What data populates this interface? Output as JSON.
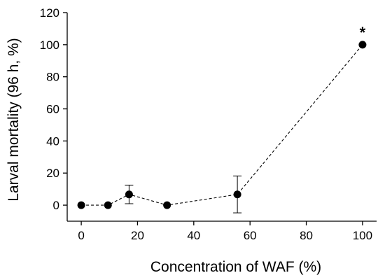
{
  "chart_data": {
    "type": "scatter",
    "xlabel": "Concentration of WAF (%)",
    "ylabel": "Larval mortality (96 h, %)",
    "xlim": [
      -5,
      105
    ],
    "ylim": [
      -10,
      120
    ],
    "xticks": [
      0,
      20,
      40,
      60,
      80,
      100
    ],
    "yticks": [
      0,
      20,
      40,
      60,
      80,
      100,
      120
    ],
    "series": [
      {
        "x": [
          0,
          9.5,
          17,
          30.5,
          55.5,
          100
        ],
        "y": [
          0,
          0,
          6.7,
          0,
          6.7,
          100
        ],
        "error": [
          0,
          0,
          5.8,
          0,
          11.5,
          0
        ],
        "line_style": "dashed",
        "marker": "filled-circle"
      }
    ],
    "annotations": [
      {
        "text": "*",
        "x": 100,
        "y": 100
      }
    ],
    "grid": false
  }
}
